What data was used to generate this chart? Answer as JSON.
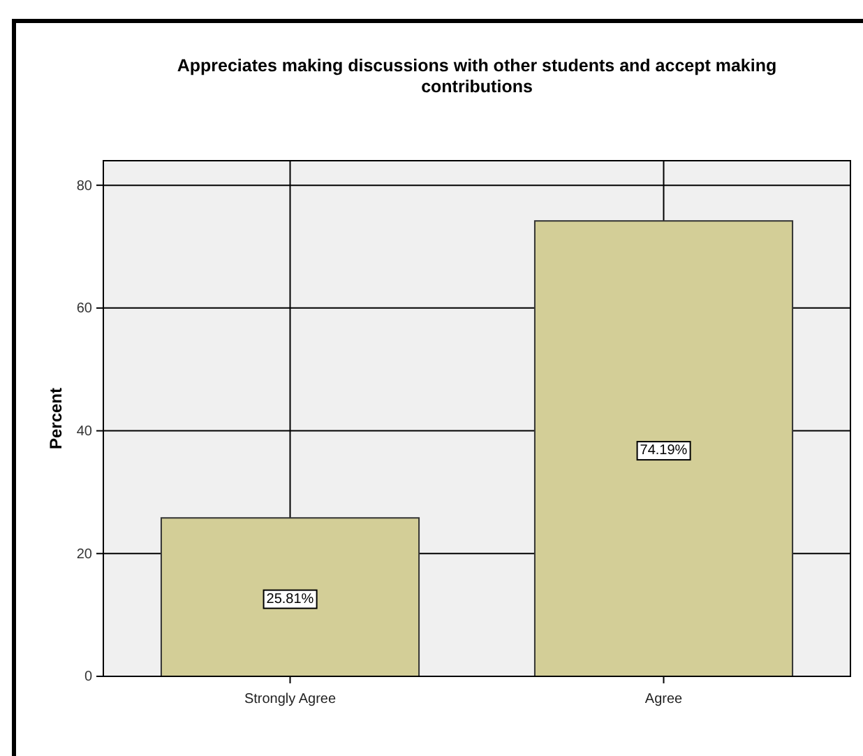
{
  "chart_data": {
    "type": "bar",
    "title": "Appreciates making discussions with other students and accept making contributions",
    "ylabel": "Percent",
    "categories": [
      "Strongly Agree",
      "Agree"
    ],
    "values": [
      25.81,
      74.19
    ],
    "color": "#d3ce97",
    "value_labels": [
      "25.81%",
      "74.19%"
    ],
    "ylim": [
      0,
      84
    ],
    "yticks": [
      0,
      20,
      40,
      60,
      80
    ],
    "grid": true
  }
}
